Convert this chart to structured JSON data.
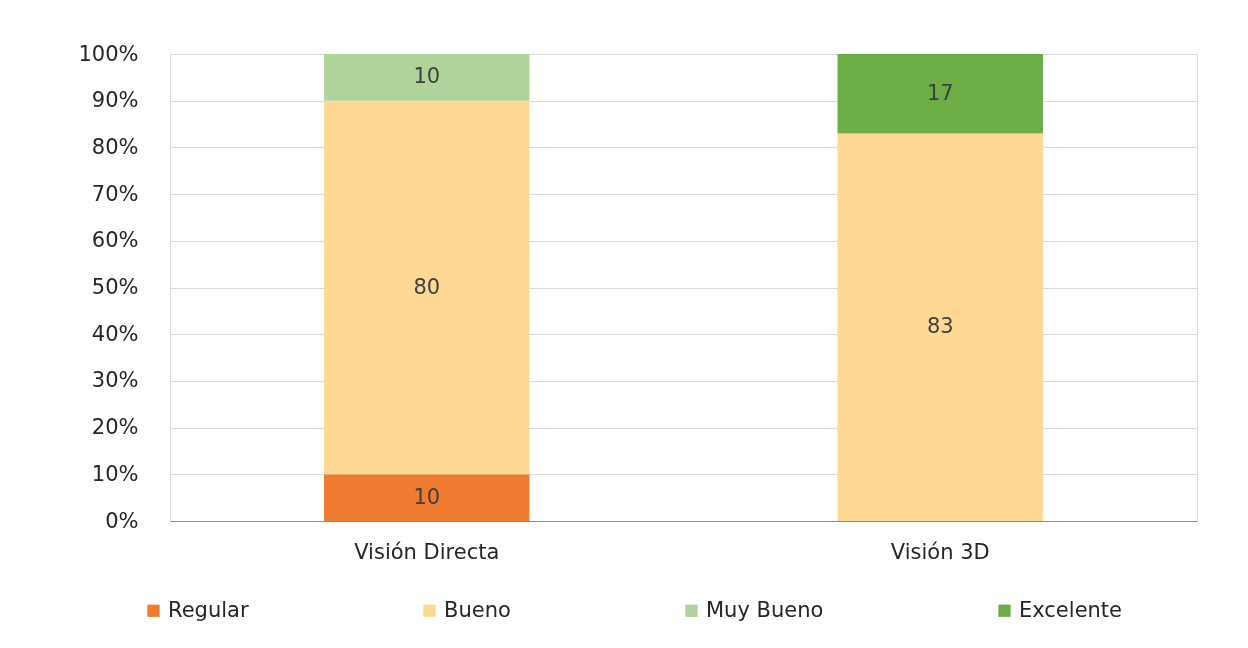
{
  "chart_data": {
    "type": "bar",
    "stacked": true,
    "categories": [
      "Visión  Directa",
      "Visión 3D"
    ],
    "series": [
      {
        "name": "Regular",
        "color": "#ee7b30",
        "values": [
          10,
          null
        ]
      },
      {
        "name": "Bueno",
        "color": "#ffd993",
        "values": [
          80,
          83
        ]
      },
      {
        "name": "Muy Bueno",
        "color": "#b0d39c",
        "values": [
          10,
          null
        ]
      },
      {
        "name": "Excelente",
        "color": "#6cae45",
        "values": [
          null,
          17
        ]
      }
    ],
    "ylim": [
      0,
      100
    ],
    "yticks": [
      {
        "value": 0,
        "label": "0%"
      },
      {
        "value": 10,
        "label": "10%"
      },
      {
        "value": 20,
        "label": "20%"
      },
      {
        "value": 30,
        "label": "30%"
      },
      {
        "value": 40,
        "label": "40%"
      },
      {
        "value": 50,
        "label": "50%"
      },
      {
        "value": 60,
        "label": "60%"
      },
      {
        "value": 70,
        "label": "70%"
      },
      {
        "value": 80,
        "label": "80%"
      },
      {
        "value": 90,
        "label": "90%"
      },
      {
        "value": 100,
        "label": "100%"
      }
    ],
    "grid": "y",
    "legend": "bottom",
    "data_labels": true
  }
}
